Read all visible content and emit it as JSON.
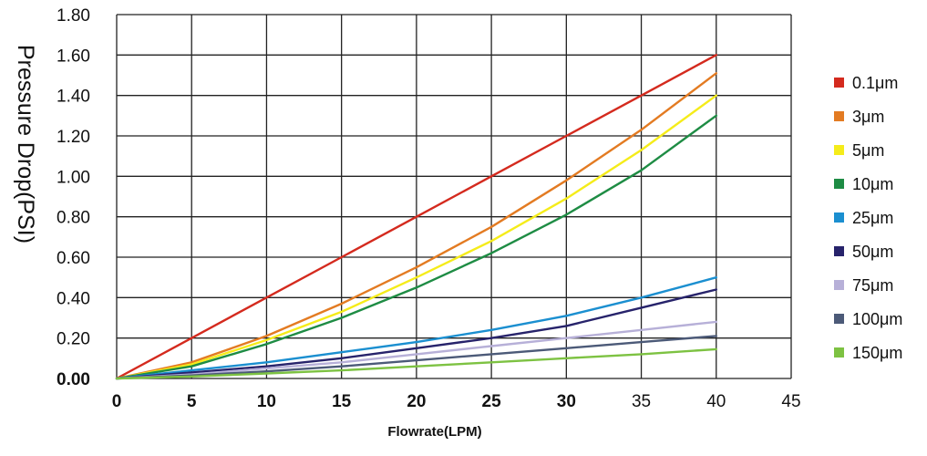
{
  "chart_data": {
    "type": "line",
    "title": "",
    "xlabel": "Flowrate(LPM)",
    "ylabel": "Pressure Drop(PSI)",
    "xlim": [
      0,
      45
    ],
    "ylim": [
      0,
      1.8
    ],
    "x_ticks": [
      "0",
      "5",
      "10",
      "15",
      "20",
      "25",
      "30",
      "35",
      "40",
      "45"
    ],
    "y_ticks": [
      "0.00",
      "0.20",
      "0.40",
      "0.60",
      "0.80",
      "1.00",
      "1.20",
      "1.40",
      "1.60",
      "1.80"
    ],
    "grid": true,
    "legend_position": "right",
    "x": [
      0,
      5,
      10,
      15,
      20,
      25,
      30,
      35,
      40
    ],
    "series": [
      {
        "name": "0.1μm",
        "color": "#d42a1e",
        "values": [
          0,
          0.2,
          0.4,
          0.6,
          0.8,
          1.0,
          1.2,
          1.4,
          1.6
        ]
      },
      {
        "name": "3μm",
        "color": "#e37b22",
        "values": [
          0,
          0.08,
          0.21,
          0.37,
          0.55,
          0.75,
          0.98,
          1.23,
          1.51
        ]
      },
      {
        "name": "5μm",
        "color": "#f5ec1a",
        "values": [
          0,
          0.07,
          0.19,
          0.33,
          0.5,
          0.68,
          0.89,
          1.13,
          1.4
        ]
      },
      {
        "name": "10μm",
        "color": "#1e8c44",
        "values": [
          0,
          0.06,
          0.17,
          0.3,
          0.45,
          0.62,
          0.81,
          1.03,
          1.3
        ]
      },
      {
        "name": "25μm",
        "color": "#1b8fd0",
        "values": [
          0,
          0.04,
          0.08,
          0.13,
          0.18,
          0.24,
          0.31,
          0.4,
          0.5
        ]
      },
      {
        "name": "50μm",
        "color": "#27236b",
        "values": [
          0,
          0.03,
          0.06,
          0.1,
          0.15,
          0.2,
          0.26,
          0.35,
          0.44
        ]
      },
      {
        "name": "75μm",
        "color": "#b7b0d8",
        "values": [
          0,
          0.02,
          0.05,
          0.08,
          0.12,
          0.16,
          0.2,
          0.24,
          0.28
        ]
      },
      {
        "name": "100μm",
        "color": "#4c5a78",
        "values": [
          0,
          0.015,
          0.035,
          0.06,
          0.09,
          0.12,
          0.15,
          0.18,
          0.21
        ]
      },
      {
        "name": "150μm",
        "color": "#7dc242",
        "values": [
          0,
          0.01,
          0.025,
          0.04,
          0.06,
          0.08,
          0.1,
          0.12,
          0.145
        ]
      }
    ]
  }
}
